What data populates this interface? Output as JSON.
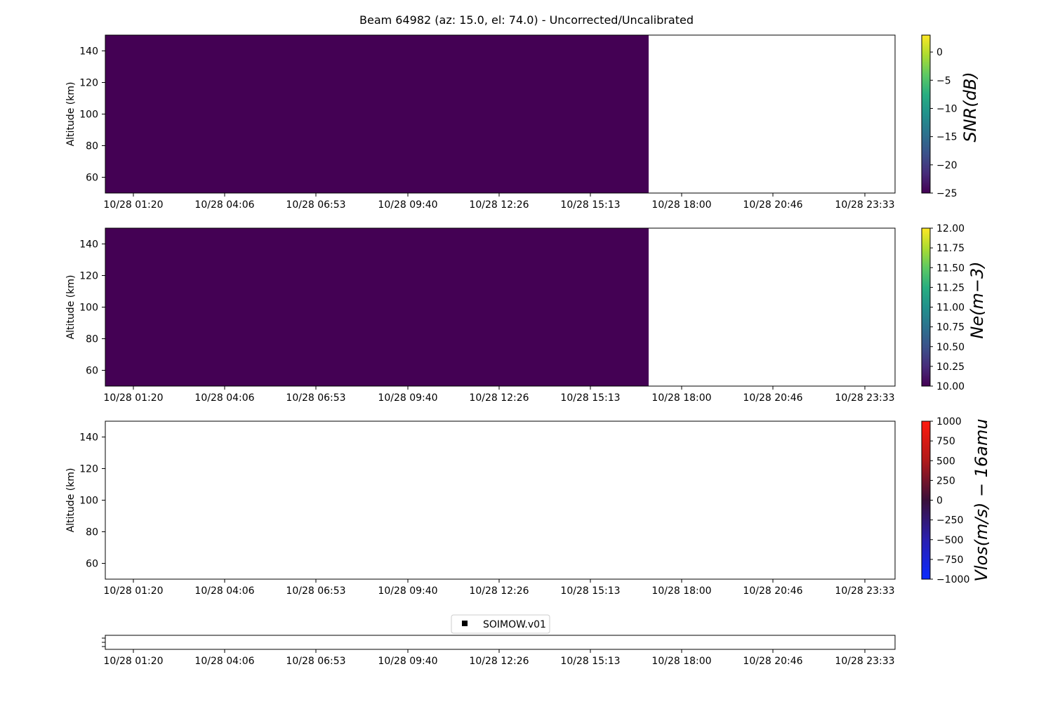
{
  "title": "Beam 64982 (az: 15.0, el: 74.0) - Uncorrected/Uncalibrated",
  "chart_data": [
    {
      "type": "heatmap",
      "ylabel": "Altitude (km)",
      "ylim": [
        50,
        150
      ],
      "yticks": [
        "60",
        "80",
        "100",
        "120",
        "140"
      ],
      "yvals": [
        60,
        80,
        100,
        120,
        140
      ],
      "xticks": [
        "10/28 01:20",
        "10/28 04:06",
        "10/28 06:53",
        "10/28 09:40",
        "10/28 12:26",
        "10/28 15:13",
        "10/28 18:00",
        "10/28 20:46",
        "10/28 23:33"
      ],
      "filled_until_fraction": 0.688,
      "fill_color": "#440154",
      "colorbar": {
        "label": "SNR(dB)",
        "range": [
          -25,
          3
        ],
        "ticks": [
          "0",
          "−5",
          "−10",
          "−15",
          "−20",
          "−25"
        ],
        "tickvals": [
          0,
          -5,
          -10,
          -15,
          -20,
          -25
        ],
        "colormap": "viridis"
      }
    },
    {
      "type": "heatmap",
      "ylabel": "Altitude (km)",
      "ylim": [
        50,
        150
      ],
      "yticks": [
        "60",
        "80",
        "100",
        "120",
        "140"
      ],
      "yvals": [
        60,
        80,
        100,
        120,
        140
      ],
      "xticks": [
        "10/28 01:20",
        "10/28 04:06",
        "10/28 06:53",
        "10/28 09:40",
        "10/28 12:26",
        "10/28 15:13",
        "10/28 18:00",
        "10/28 20:46",
        "10/28 23:33"
      ],
      "filled_until_fraction": 0.688,
      "fill_color": "#440154",
      "colorbar": {
        "label": "Ne(m−3)",
        "range": [
          10,
          12
        ],
        "ticks": [
          "12.00",
          "11.75",
          "11.50",
          "11.25",
          "11.00",
          "10.75",
          "10.50",
          "10.25",
          "10.00"
        ],
        "tickvals": [
          12,
          11.75,
          11.5,
          11.25,
          11,
          10.75,
          10.5,
          10.25,
          10
        ],
        "colormap": "viridis"
      }
    },
    {
      "type": "heatmap",
      "ylabel": "Altitude (km)",
      "ylim": [
        50,
        150
      ],
      "yticks": [
        "60",
        "80",
        "100",
        "120",
        "140"
      ],
      "yvals": [
        60,
        80,
        100,
        120,
        140
      ],
      "xticks": [
        "10/28 01:20",
        "10/28 04:06",
        "10/28 06:53",
        "10/28 09:40",
        "10/28 12:26",
        "10/28 15:13",
        "10/28 18:00",
        "10/28 20:46",
        "10/28 23:33"
      ],
      "filled_until_fraction": 0,
      "fill_color": "",
      "colorbar": {
        "label": "Vlos(m/s) − 16amu",
        "range": [
          -1000,
          1000
        ],
        "ticks": [
          "1000",
          "750",
          "500",
          "250",
          "0",
          "−250",
          "−500",
          "−750",
          "−1000"
        ],
        "tickvals": [
          1000,
          750,
          500,
          250,
          0,
          -250,
          -500,
          -750,
          -1000
        ],
        "colormap": "bwr_dark"
      }
    },
    {
      "type": "scatter",
      "legend": [
        "SOIMOW.v01"
      ],
      "xticks": [
        "10/28 01:20",
        "10/28 04:06",
        "10/28 06:53",
        "10/28 09:40",
        "10/28 12:26",
        "10/28 15:13",
        "10/28 18:00",
        "10/28 20:46",
        "10/28 23:33"
      ]
    }
  ]
}
